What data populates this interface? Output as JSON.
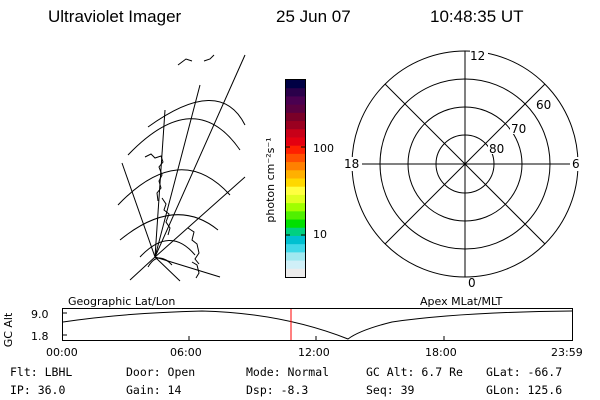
{
  "header": {
    "instrument": "Ultraviolet Imager",
    "date": "25 Jun 07",
    "time": "10:48:35 UT"
  },
  "colorbar": {
    "unit_label": "photon cm⁻²s⁻¹",
    "tick_100": "100",
    "tick_10": "10",
    "colors": [
      "#000044",
      "#2a004a",
      "#4a0050",
      "#5a0040",
      "#7a0028",
      "#9a0020",
      "#c80018",
      "#e40010",
      "#ff2000",
      "#ff5000",
      "#ff8000",
      "#ffb000",
      "#ffd800",
      "#ffff40",
      "#e0ff20",
      "#a0ff00",
      "#50f000",
      "#00e000",
      "#00d080",
      "#00c0d0",
      "#40d8e8",
      "#a0e8f0",
      "#d0f0f8",
      "#ececec"
    ]
  },
  "polar": {
    "label_12": "12",
    "label_18": "18",
    "label_6": "6",
    "label_0": "0",
    "label_60": "60",
    "label_70": "70",
    "label_80": "80"
  },
  "coords": {
    "left": "Geographic Lat/Lon",
    "right": "Apex MLat/MLT"
  },
  "altitude": {
    "axis_label": "GC Alt",
    "max": "9.0",
    "min": "1.8",
    "marker_color": "#ff0000"
  },
  "time_axis": [
    "00:00",
    "06:00",
    "12:00",
    "18:00",
    "23:59"
  ],
  "footer": {
    "flt": "Flt: LBHL",
    "ip": "IP: 36.0",
    "door": "Door: Open",
    "gain": "Gain: 14",
    "mode": "Mode: Normal",
    "dsp": "Dsp:   -8.3",
    "gcalt": "GC Alt: 6.7 Re",
    "seq": "Seq: 39",
    "glat": "GLat: -66.7",
    "glon": "GLon: 125.6"
  }
}
